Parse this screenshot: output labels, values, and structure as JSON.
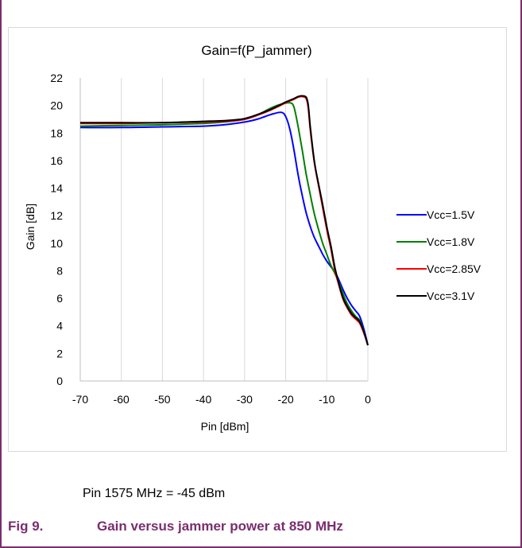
{
  "note": "Pin 1575 MHz = -45 dBm",
  "caption": {
    "number": "Fig 9.",
    "text": "Gain versus jammer power at 850 MHz"
  },
  "colors": {
    "frame": "#7a2d6f",
    "caption": "#7a2d6f"
  },
  "chart_data": {
    "type": "line",
    "title": "Gain=f(P_jammer)",
    "xlabel": "Pin [dBm]",
    "ylabel": "Gain [dB]",
    "xlim": [
      -70,
      0
    ],
    "ylim": [
      0,
      22
    ],
    "xticks": [
      -70,
      -60,
      -50,
      -40,
      -30,
      -20,
      -10,
      0
    ],
    "yticks": [
      0,
      2,
      4,
      6,
      8,
      10,
      12,
      14,
      16,
      18,
      20,
      22
    ],
    "grid": "vertical",
    "legend_position": "right",
    "series": [
      {
        "name": "Vcc=1.5V",
        "color": "#0000ff",
        "x": [
          -70,
          -60,
          -50,
          -40,
          -35,
          -30,
          -27,
          -25,
          -23,
          -21,
          -20,
          -19,
          -18,
          -17,
          -16,
          -15,
          -14,
          -13,
          -12,
          -11,
          -10,
          -9,
          -8,
          -7,
          -6,
          -5,
          -4,
          -3,
          -2,
          -1,
          0
        ],
        "y": [
          18.4,
          18.4,
          18.45,
          18.5,
          18.6,
          18.8,
          19.0,
          19.2,
          19.4,
          19.5,
          19.2,
          18.3,
          16.8,
          15.0,
          13.5,
          12.2,
          11.2,
          10.4,
          9.8,
          9.2,
          8.7,
          8.3,
          7.9,
          7.3,
          6.6,
          6.0,
          5.5,
          5.1,
          4.7,
          3.8,
          2.6
        ]
      },
      {
        "name": "Vcc=1.8V",
        "color": "#008000",
        "x": [
          -70,
          -60,
          -50,
          -40,
          -35,
          -30,
          -27,
          -25,
          -23,
          -21,
          -19,
          -18,
          -17,
          -16,
          -15,
          -14,
          -13,
          -12,
          -11,
          -10,
          -9,
          -8,
          -7,
          -6,
          -5,
          -4,
          -3,
          -2,
          -1,
          0
        ],
        "y": [
          18.5,
          18.55,
          18.6,
          18.7,
          18.8,
          19.0,
          19.3,
          19.6,
          19.9,
          20.1,
          20.2,
          19.9,
          18.5,
          16.8,
          15.0,
          13.5,
          12.1,
          11.0,
          10.0,
          9.2,
          8.4,
          7.8,
          7.1,
          6.3,
          5.6,
          5.1,
          4.7,
          4.4,
          3.6,
          2.6
        ]
      },
      {
        "name": "Vcc=2.85V",
        "color": "#ff0000",
        "x": [
          -70,
          -60,
          -50,
          -40,
          -35,
          -30,
          -25,
          -22,
          -20,
          -18,
          -17,
          -16,
          -15,
          -14.5,
          -14,
          -13,
          -12,
          -11,
          -10,
          -9,
          -8,
          -7,
          -6,
          -5,
          -4,
          -3,
          -2,
          -1,
          0
        ],
        "y": [
          18.7,
          18.7,
          18.75,
          18.8,
          18.85,
          19.0,
          19.5,
          19.9,
          20.2,
          20.45,
          20.6,
          20.65,
          20.5,
          19.8,
          18.2,
          15.8,
          14.2,
          12.6,
          11.0,
          9.6,
          8.0,
          6.9,
          5.9,
          5.3,
          4.8,
          4.5,
          4.2,
          3.5,
          2.6
        ]
      },
      {
        "name": "Vcc=3.1V",
        "color": "#000000",
        "x": [
          -70,
          -60,
          -50,
          -40,
          -35,
          -30,
          -25,
          -22,
          -20,
          -18,
          -17,
          -16,
          -15,
          -14.5,
          -14,
          -13,
          -12,
          -11,
          -10,
          -9,
          -8,
          -7,
          -6,
          -5,
          -4,
          -3,
          -2,
          -1,
          0
        ],
        "y": [
          18.75,
          18.75,
          18.75,
          18.85,
          18.9,
          19.05,
          19.55,
          19.95,
          20.25,
          20.5,
          20.65,
          20.7,
          20.6,
          20.0,
          18.4,
          15.9,
          14.3,
          12.8,
          11.2,
          9.8,
          8.2,
          7.0,
          6.0,
          5.4,
          4.9,
          4.6,
          4.3,
          3.6,
          2.6
        ]
      }
    ]
  }
}
